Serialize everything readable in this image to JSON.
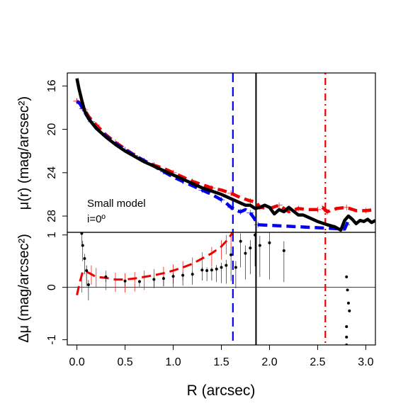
{
  "chart_data": [
    {
      "type": "line",
      "panel": "top",
      "ylabel": "μ(r) (mag/arcsec²)",
      "xlim": [
        -0.1,
        3.1
      ],
      "ylim": [
        29.5,
        14.8
      ],
      "y_inverted": true,
      "yticks": [
        16,
        20,
        24,
        28
      ],
      "annotation": [
        "Small model",
        "i=0º"
      ],
      "vlines": [
        {
          "x": 1.62,
          "color": "#0000ee",
          "style": "dashed"
        },
        {
          "x": 1.86,
          "color": "#000000",
          "style": "solid"
        },
        {
          "x": 2.58,
          "color": "#ee0000",
          "style": "dotdash"
        }
      ],
      "series": [
        {
          "color": "#000000",
          "style": "solid",
          "x": [
            0.0,
            0.02,
            0.05,
            0.08,
            0.12,
            0.2,
            0.3,
            0.4,
            0.5,
            0.6,
            0.7,
            0.8,
            0.9,
            1.0,
            1.1,
            1.2,
            1.3,
            1.4,
            1.5,
            1.6,
            1.65,
            1.7,
            1.75,
            1.8,
            1.85,
            1.9,
            1.95,
            2.0,
            2.05,
            2.1,
            2.15,
            2.2,
            2.3,
            2.35,
            2.4,
            2.5,
            2.6,
            2.68,
            2.7,
            2.74,
            2.78,
            2.82,
            2.86,
            2.9,
            2.94,
            2.98,
            3.02,
            3.06,
            3.1
          ],
          "y": [
            15.3,
            16.2,
            17.3,
            18.3,
            19.0,
            19.9,
            20.7,
            21.4,
            22.0,
            22.5,
            23.0,
            23.4,
            23.8,
            24.2,
            24.6,
            25.0,
            25.4,
            25.7,
            26.0,
            26.4,
            26.6,
            26.8,
            27.0,
            27.0,
            27.3,
            27.2,
            27.0,
            27.2,
            27.8,
            27.4,
            27.6,
            27.2,
            27.9,
            27.9,
            28.1,
            28.5,
            28.8,
            29.0,
            29.1,
            29.3,
            28.4,
            28.0,
            28.3,
            28.7,
            28.4,
            28.5,
            28.3,
            28.6,
            28.4
          ]
        },
        {
          "color": "#0000ee",
          "style": "dashed",
          "x": [
            0.0,
            0.03,
            0.06,
            0.1,
            0.15,
            0.2,
            0.3,
            0.4,
            0.5,
            0.6,
            0.7,
            0.8,
            0.9,
            1.0,
            1.1,
            1.2,
            1.3,
            1.4,
            1.5,
            1.55,
            1.6,
            1.65,
            1.7,
            1.75,
            1.8,
            1.84,
            1.88,
            2.78,
            2.8,
            2.82
          ],
          "y": [
            17.4,
            17.6,
            18.1,
            18.7,
            19.3,
            19.9,
            20.6,
            21.3,
            21.9,
            22.4,
            22.9,
            23.4,
            23.9,
            24.4,
            24.8,
            25.2,
            25.6,
            26.0,
            26.5,
            26.8,
            27.2,
            27.5,
            27.6,
            27.4,
            27.7,
            28.2,
            28.8,
            29.2,
            28.8,
            28.4
          ]
        },
        {
          "color": "#ee0000",
          "style": "dashed",
          "x": [
            0.0,
            0.04,
            0.08,
            0.12,
            0.2,
            0.3,
            0.4,
            0.5,
            0.6,
            0.7,
            0.8,
            0.9,
            1.0,
            1.1,
            1.2,
            1.3,
            1.4,
            1.5,
            1.6,
            1.7,
            1.8,
            1.86,
            1.9,
            2.0,
            2.1,
            2.2,
            2.3,
            2.4,
            2.5,
            2.55,
            2.6,
            2.7,
            2.8,
            2.9,
            3.0,
            3.1
          ],
          "y": [
            17.4,
            17.7,
            18.2,
            18.8,
            19.6,
            20.5,
            21.2,
            21.8,
            22.4,
            22.9,
            23.3,
            23.6,
            24.0,
            24.4,
            24.8,
            25.1,
            25.4,
            25.6,
            25.9,
            26.3,
            26.6,
            26.7,
            27.2,
            27.3,
            27.0,
            27.6,
            27.3,
            27.4,
            27.4,
            27.2,
            27.6,
            27.3,
            27.2,
            27.5,
            27.5,
            27.4
          ]
        }
      ]
    },
    {
      "type": "scatter",
      "panel": "bottom",
      "xlabel": "R (arcsec)",
      "ylabel": "Δμ (mag/arcsec²)",
      "xlim": [
        -0.1,
        3.1
      ],
      "ylim": [
        -1.1,
        1.05
      ],
      "xticks": [
        0.0,
        0.5,
        1.0,
        1.5,
        2.0,
        2.5,
        3.0
      ],
      "xtick_labels": [
        "0.0",
        "0.5",
        "1.0",
        "1.5",
        "2.0",
        "2.5",
        "3.0"
      ],
      "yticks": [
        -1,
        0,
        1
      ],
      "reference_line": 0,
      "points": {
        "x": [
          0.05,
          0.06,
          0.08,
          0.1,
          0.12,
          0.3,
          0.5,
          0.65,
          0.8,
          0.9,
          1.0,
          1.1,
          1.2,
          1.3,
          1.35,
          1.4,
          1.45,
          1.5,
          1.55,
          1.6,
          1.65,
          1.7,
          1.75,
          1.8,
          1.85,
          1.9,
          2.0,
          2.15,
          2.8,
          2.81,
          2.82,
          2.83
        ],
        "y": [
          1.03,
          0.8,
          0.55,
          0.32,
          0.05,
          0.2,
          0.12,
          0.11,
          0.15,
          0.17,
          0.21,
          0.23,
          0.25,
          0.33,
          0.32,
          0.33,
          0.35,
          0.38,
          0.42,
          0.62,
          0.38,
          0.88,
          0.65,
          0.75,
          1.0,
          0.8,
          0.85,
          0.7,
          0.2,
          -0.05,
          -0.3,
          -0.45
        ],
        "yerr": [
          0.2,
          0.3,
          0.3,
          0.3,
          0.3,
          0.1,
          0.1,
          0.1,
          0.15,
          0.15,
          0.2,
          0.2,
          0.2,
          0.2,
          0.2,
          0.2,
          0.25,
          0.3,
          0.35,
          0.5,
          0.4,
          0.5,
          0.5,
          0.5,
          0.6,
          0.6,
          0.7,
          0.6,
          0,
          0,
          0,
          0
        ]
      },
      "extra_points": {
        "x": [
          2.8,
          2.8,
          2.8
        ],
        "y": [
          -0.75,
          -0.95,
          -1.1
        ]
      },
      "series": [
        {
          "color": "#ee0000",
          "style": "dashed",
          "x": [
            0.0,
            0.03,
            0.06,
            0.1,
            0.15,
            0.2,
            0.3,
            0.4,
            0.5,
            0.6,
            0.7,
            0.8,
            0.9,
            1.0,
            1.1,
            1.2,
            1.3,
            1.4,
            1.5,
            1.55,
            1.6,
            1.62
          ],
          "y": [
            -0.15,
            0.1,
            0.3,
            0.3,
            0.25,
            0.2,
            0.18,
            0.15,
            0.15,
            0.17,
            0.2,
            0.23,
            0.27,
            0.32,
            0.38,
            0.45,
            0.55,
            0.65,
            0.78,
            0.88,
            1.0,
            1.05
          ]
        }
      ],
      "red_errorbars_x": [
        0.05,
        0.1,
        0.15,
        0.2,
        0.3,
        0.4,
        0.5,
        0.6,
        0.7,
        0.8,
        0.9,
        1.0,
        1.1,
        1.2,
        1.3,
        1.4,
        1.5,
        1.55,
        1.6
      ],
      "red_errorbars_y": [
        0.15,
        0.3,
        0.3,
        0.25,
        0.2,
        0.16,
        0.15,
        0.17,
        0.2,
        0.23,
        0.27,
        0.32,
        0.38,
        0.45,
        0.55,
        0.65,
        0.78,
        0.88,
        1.0
      ],
      "vlines": [
        {
          "x": 1.62,
          "color": "#0000ee",
          "style": "dashed"
        },
        {
          "x": 1.86,
          "color": "#000000",
          "style": "solid"
        },
        {
          "x": 2.58,
          "color": "#ee0000",
          "style": "dotdash"
        }
      ]
    }
  ]
}
